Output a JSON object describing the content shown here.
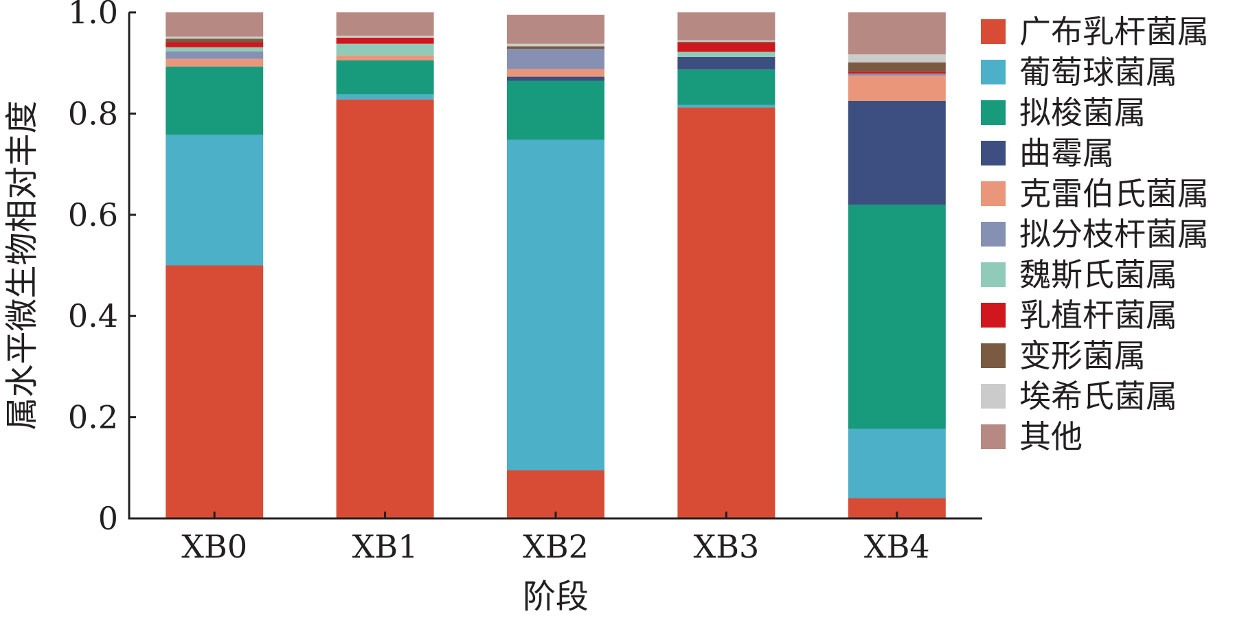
{
  "chart_data": {
    "type": "bar",
    "stacked": true,
    "categories": [
      "XB0",
      "XB1",
      "XB2",
      "XB3",
      "XB4"
    ],
    "xlabel": "阶段",
    "ylabel": "属水平微生物相对丰度",
    "ylim": [
      0,
      1.0
    ],
    "yticks": [
      {
        "value": 0,
        "label": "0"
      },
      {
        "value": 0.2,
        "label": "0.2"
      },
      {
        "value": 0.4,
        "label": "0.4"
      },
      {
        "value": 0.6,
        "label": "0.6"
      },
      {
        "value": 0.8,
        "label": "0.8"
      },
      {
        "value": 1.0,
        "label": "1.0"
      }
    ],
    "legend_position": "right",
    "series": [
      {
        "name": "广布乳杆菌属",
        "color": "#d84c35",
        "values": [
          0.5,
          0.828,
          0.095,
          0.812,
          0.04
        ]
      },
      {
        "name": "葡萄球菌属",
        "color": "#4cb0c8",
        "values": [
          0.258,
          0.01,
          0.653,
          0.005,
          0.137
        ]
      },
      {
        "name": "拟梭菌属",
        "color": "#189a7d",
        "values": [
          0.135,
          0.067,
          0.117,
          0.07,
          0.443
        ]
      },
      {
        "name": "曲霉属",
        "color": "#3d4f80",
        "values": [
          0.0,
          0.0,
          0.008,
          0.025,
          0.205
        ]
      },
      {
        "name": "克雷伯氏菌属",
        "color": "#ea967a",
        "values": [
          0.015,
          0.01,
          0.015,
          0.0,
          0.05
        ]
      },
      {
        "name": "拟分枝杆菌属",
        "color": "#8590b2",
        "values": [
          0.015,
          0.0,
          0.04,
          0.0,
          0.004
        ]
      },
      {
        "name": "魏斯氏菌属",
        "color": "#8fcbb8",
        "values": [
          0.008,
          0.023,
          0.0,
          0.01,
          0.0
        ]
      },
      {
        "name": "乳植杆菌属",
        "color": "#d0171d",
        "values": [
          0.01,
          0.012,
          0.0,
          0.018,
          0.004
        ]
      },
      {
        "name": "变形菌属",
        "color": "#7a5a41",
        "values": [
          0.007,
          0.0,
          0.005,
          0.002,
          0.018
        ]
      },
      {
        "name": "埃希氏菌属",
        "color": "#cbcbcb",
        "values": [
          0.004,
          0.004,
          0.005,
          0.003,
          0.016
        ]
      },
      {
        "name": "其他",
        "color": "#b68982",
        "values": [
          0.048,
          0.046,
          0.057,
          0.055,
          0.083
        ]
      }
    ]
  }
}
